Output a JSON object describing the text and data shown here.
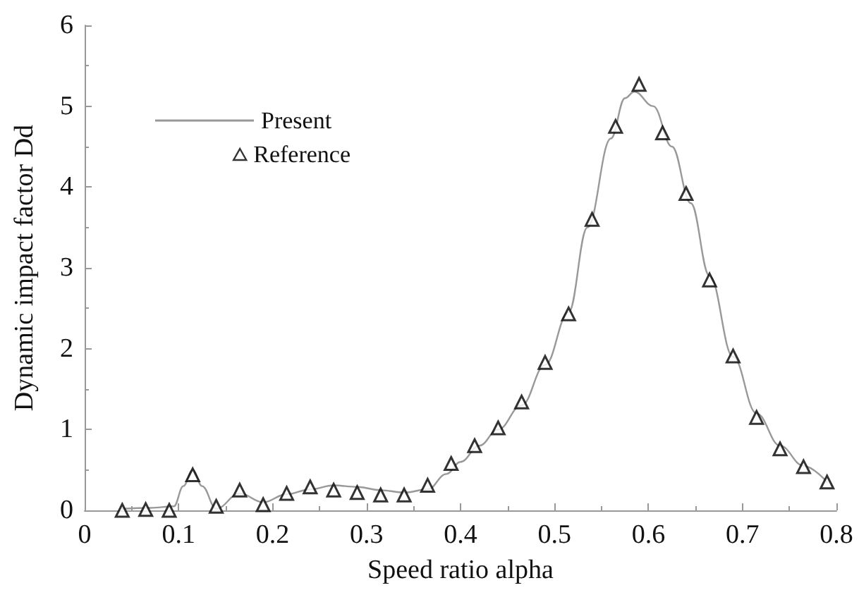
{
  "chart_data": {
    "type": "line",
    "xlabel": "Speed ratio alpha",
    "ylabel": "Dynamic impact factor Dd",
    "xlim": [
      0,
      0.8
    ],
    "xticks": [
      0,
      0.1,
      0.2,
      0.3,
      0.4,
      0.5,
      0.6,
      0.7,
      0.8
    ],
    "ylim": [
      0,
      6
    ],
    "yticks": [
      0,
      1,
      2,
      3,
      4,
      5,
      6
    ],
    "grid": false,
    "legend": "top left",
    "series": [
      {
        "name": "Present",
        "color": "#999999",
        "marker": "none",
        "line_style": "solid",
        "x": [
          0.04,
          0.07,
          0.095,
          0.105,
          0.115,
          0.125,
          0.14,
          0.165,
          0.19,
          0.215,
          0.24,
          0.265,
          0.29,
          0.315,
          0.34,
          0.365,
          0.385,
          0.4,
          0.42,
          0.44,
          0.465,
          0.49,
          0.515,
          0.535,
          0.56,
          0.575,
          0.585,
          0.605,
          0.625,
          0.645,
          0.665,
          0.69,
          0.715,
          0.74,
          0.765,
          0.79
        ],
        "values": [
          0.02,
          0.03,
          0.05,
          0.3,
          0.5,
          0.3,
          0.02,
          0.21,
          0.1,
          0.2,
          0.26,
          0.31,
          0.29,
          0.25,
          0.22,
          0.26,
          0.45,
          0.6,
          0.8,
          1.0,
          1.3,
          1.8,
          2.45,
          3.5,
          4.6,
          5.1,
          5.18,
          5.0,
          4.5,
          3.8,
          2.9,
          1.9,
          1.2,
          0.8,
          0.55,
          0.35
        ]
      },
      {
        "name": "Reference",
        "type": "scatter",
        "color": "#000000",
        "marker": "triangle",
        "x": [
          0.04,
          0.065,
          0.09,
          0.115,
          0.14,
          0.165,
          0.19,
          0.215,
          0.24,
          0.265,
          0.29,
          0.315,
          0.34,
          0.365,
          0.39,
          0.415,
          0.44,
          0.465,
          0.49,
          0.515,
          0.54,
          0.565,
          0.59,
          0.615,
          0.64,
          0.665,
          0.69,
          0.715,
          0.74,
          0.765,
          0.79
        ],
        "values": [
          0.0,
          0.01,
          0.0,
          0.44,
          0.05,
          0.25,
          0.07,
          0.21,
          0.29,
          0.25,
          0.22,
          0.19,
          0.19,
          0.31,
          0.58,
          0.8,
          1.02,
          1.34,
          1.83,
          2.43,
          3.6,
          4.75,
          5.27,
          4.67,
          3.92,
          2.85,
          1.91,
          1.15,
          0.76,
          0.54,
          0.35
        ]
      }
    ]
  }
}
